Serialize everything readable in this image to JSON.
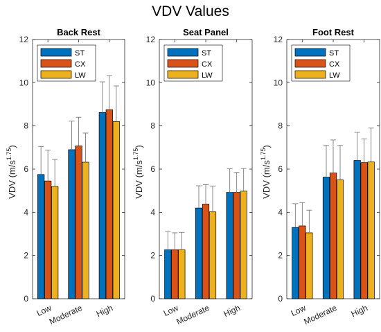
{
  "figure_title": "VDV Values",
  "colors": {
    "ST": "#0072BD",
    "CX": "#D95319",
    "LW": "#EDB120",
    "axis": "#262626",
    "bar_edge": "#000000",
    "error": "#7a7a7a"
  },
  "chart_data": [
    {
      "type": "bar",
      "title": "Back Rest",
      "ylabel": "VDV (m/s",
      "ylabel_exp": "1.75",
      "ylabel_close": ")",
      "ylim": [
        0,
        12
      ],
      "yticks": [
        0,
        2,
        4,
        6,
        8,
        10,
        12
      ],
      "categories": [
        "Low",
        "Moderate",
        "High"
      ],
      "legend_position": "top-left",
      "series": [
        {
          "name": "ST",
          "values": [
            5.75,
            6.9,
            8.62
          ],
          "errors": [
            1.3,
            1.32,
            1.42
          ]
        },
        {
          "name": "CX",
          "values": [
            5.45,
            7.07,
            8.75
          ],
          "errors": [
            1.43,
            1.33,
            1.58
          ]
        },
        {
          "name": "LW",
          "values": [
            5.2,
            6.32,
            8.2
          ],
          "errors": [
            1.25,
            1.35,
            1.65
          ]
        }
      ]
    },
    {
      "type": "bar",
      "title": "Seat Panel",
      "ylabel": "VDV (m/s",
      "ylabel_exp": "1.75",
      "ylabel_close": ")",
      "ylim": [
        0,
        12
      ],
      "yticks": [
        0,
        2,
        4,
        6,
        8,
        10,
        12
      ],
      "categories": [
        "Low",
        "Moderate",
        "High"
      ],
      "legend_position": "top-left",
      "series": [
        {
          "name": "ST",
          "values": [
            2.27,
            4.2,
            4.92
          ],
          "errors": [
            0.83,
            1.03,
            1.1
          ]
        },
        {
          "name": "CX",
          "values": [
            2.27,
            4.38,
            4.92
          ],
          "errors": [
            0.78,
            0.9,
            0.93
          ]
        },
        {
          "name": "LW",
          "values": [
            2.27,
            4.02,
            4.98
          ],
          "errors": [
            0.8,
            1.2,
            1.05
          ]
        }
      ]
    },
    {
      "type": "bar",
      "title": "Foot Rest",
      "ylabel": "VDV (m/s",
      "ylabel_exp": "1.75",
      "ylabel_close": ")",
      "ylim": [
        0,
        12
      ],
      "yticks": [
        0,
        2,
        4,
        6,
        8,
        10,
        12
      ],
      "categories": [
        "Low",
        "Moderate",
        "High"
      ],
      "legend_position": "top-left",
      "series": [
        {
          "name": "ST",
          "values": [
            3.3,
            5.63,
            6.4
          ],
          "errors": [
            1.1,
            1.47,
            1.3
          ]
        },
        {
          "name": "CX",
          "values": [
            3.37,
            5.82,
            6.3
          ],
          "errors": [
            1.08,
            1.53,
            1.1
          ]
        },
        {
          "name": "LW",
          "values": [
            3.05,
            5.5,
            6.33
          ],
          "errors": [
            1.05,
            1.6,
            1.57
          ]
        }
      ]
    }
  ]
}
